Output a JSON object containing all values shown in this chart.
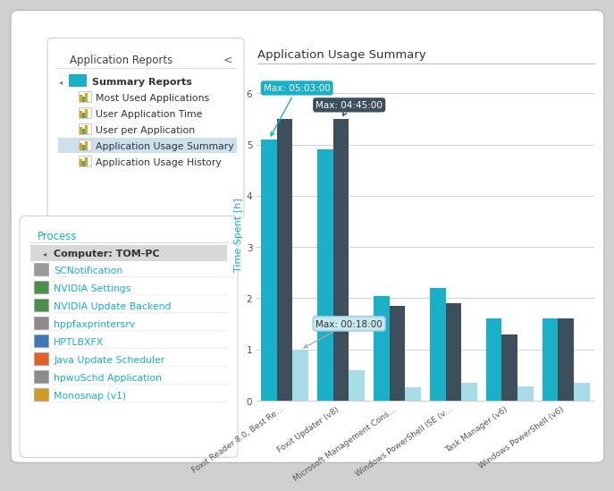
{
  "title": "Application Usage Summary",
  "ylabel": "Time Spent [h]",
  "categories": [
    "Foxit Reader 8.0, Best Re...",
    "Foxit Updater (v8)",
    "Microsoft Management Cons...",
    "Windows PowerShell ISE (v...",
    "Task Manager (v6)",
    "Windows PowerShell (v6)"
  ],
  "series1": [
    5.1,
    4.9,
    2.05,
    2.2,
    1.6,
    1.6
  ],
  "series2": [
    5.5,
    5.5,
    1.85,
    1.9,
    1.3,
    1.6
  ],
  "series3": [
    1.0,
    0.6,
    0.27,
    0.35,
    0.28,
    0.35
  ],
  "color1": "#1ab0c8",
  "color2": "#3d4f5c",
  "color3": "#a8dde8",
  "ylim": [
    0,
    6.5
  ],
  "yticks": [
    0,
    1,
    2,
    3,
    4,
    5,
    6
  ],
  "grid_color": "#cccccc",
  "tooltip1_text": "Max: 05:03:00",
  "tooltip2_text": "Max: 04:45:00",
  "tooltip3_text": "Max: 00:18:00",
  "left_panel_title": "Application Reports",
  "left_panel_items": [
    "Summary Reports",
    "Most Used Applications",
    "User Application Time",
    "User per Application",
    "Application Usage Summary",
    "Application Usage History"
  ],
  "process_panel_title": "Process",
  "process_header": "Computer: TOM-PC",
  "process_items": [
    "SCNotification",
    "NVIDIA Settings",
    "NVIDIA Update Backend",
    "hppfaxprintersrv",
    "HPTLBXFX",
    "Java Update Scheduler",
    "hpwuSchd Application",
    "Monosnap (v1)"
  ]
}
